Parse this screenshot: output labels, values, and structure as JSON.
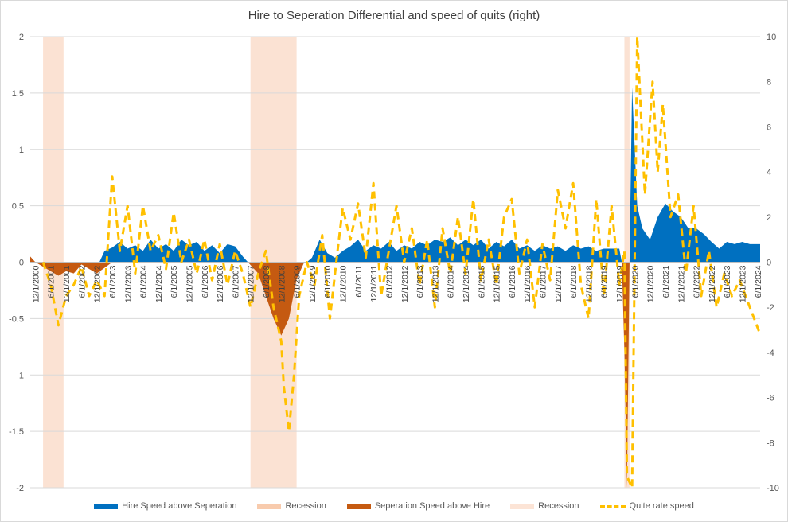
{
  "chart_data": {
    "type": "area",
    "title": "Hire to Seperation Differential and speed of quits (right)",
    "xlabel": "",
    "ylabel": "",
    "y_left": {
      "ticks": [
        "2",
        "1.5",
        "1",
        "0.5",
        "0",
        "-0.5",
        "-1",
        "-1.5",
        "-2"
      ],
      "range": [
        -2,
        2
      ]
    },
    "y_right": {
      "ticks": [
        "10",
        "8",
        "6",
        "4",
        "2",
        "0",
        "-2",
        "-4",
        "-6",
        "-8",
        "-10"
      ],
      "range": [
        -10,
        10
      ]
    },
    "x_range": [
      "2000-10",
      "2024-07"
    ],
    "x_tick_labels": [
      "12/1/2000",
      "6/1/2001",
      "12/1/2001",
      "6/1/2002",
      "12/1/2002",
      "6/1/2003",
      "12/1/2003",
      "6/1/2004",
      "12/1/2004",
      "6/1/2005",
      "12/1/2005",
      "6/1/2006",
      "12/1/2006",
      "6/1/2007",
      "12/1/2007",
      "6/1/2008",
      "12/1/2008",
      "6/1/2009",
      "12/1/2009",
      "6/1/2010",
      "12/1/2010",
      "6/1/2011",
      "12/1/2011",
      "6/1/2012",
      "12/1/2012",
      "6/1/2013",
      "12/1/2013",
      "6/1/2014",
      "12/1/2014",
      "6/1/2015",
      "12/1/2015",
      "6/1/2016",
      "12/1/2016",
      "6/1/2017",
      "12/1/2017",
      "6/1/2018",
      "12/1/2018",
      "6/1/2019",
      "12/1/2019",
      "6/1/2020",
      "12/1/2020",
      "6/1/2021",
      "12/1/2021",
      "6/1/2022",
      "12/1/2022",
      "6/1/2023",
      "12/1/2023",
      "6/1/2024"
    ],
    "recessions": [
      [
        "2001-03",
        "2001-11"
      ],
      [
        "2007-12",
        "2009-06"
      ],
      [
        "2020-02",
        "2020-04"
      ]
    ],
    "series": [
      {
        "name": "Hire Speed above Seperation",
        "kind": "area",
        "color": "#0070c0",
        "points": [
          [
            "2003-01",
            0
          ],
          [
            "2003-03",
            0.1
          ],
          [
            "2003-06",
            0.13
          ],
          [
            "2003-09",
            0.18
          ],
          [
            "2003-12",
            0.12
          ],
          [
            "2004-03",
            0.15
          ],
          [
            "2004-06",
            0.1
          ],
          [
            "2004-09",
            0.2
          ],
          [
            "2004-12",
            0.12
          ],
          [
            "2005-03",
            0.16
          ],
          [
            "2005-06",
            0.1
          ],
          [
            "2005-09",
            0.2
          ],
          [
            "2005-12",
            0.15
          ],
          [
            "2006-03",
            0.18
          ],
          [
            "2006-06",
            0.1
          ],
          [
            "2006-09",
            0.15
          ],
          [
            "2006-12",
            0.08
          ],
          [
            "2007-03",
            0.16
          ],
          [
            "2007-06",
            0.14
          ],
          [
            "2007-09",
            0.05
          ],
          [
            "2007-11",
            0
          ],
          [
            "2009-10",
            0
          ],
          [
            "2009-12",
            0.04
          ],
          [
            "2010-03",
            0.2
          ],
          [
            "2010-06",
            0.08
          ],
          [
            "2010-09",
            0.04
          ],
          [
            "2010-12",
            0.1
          ],
          [
            "2011-03",
            0.14
          ],
          [
            "2011-06",
            0.2
          ],
          [
            "2011-09",
            0.1
          ],
          [
            "2011-12",
            0.15
          ],
          [
            "2012-03",
            0.12
          ],
          [
            "2012-06",
            0.18
          ],
          [
            "2012-09",
            0.1
          ],
          [
            "2012-12",
            0.15
          ],
          [
            "2013-03",
            0.12
          ],
          [
            "2013-06",
            0.18
          ],
          [
            "2013-09",
            0.15
          ],
          [
            "2013-12",
            0.2
          ],
          [
            "2014-03",
            0.18
          ],
          [
            "2014-06",
            0.22
          ],
          [
            "2014-09",
            0.15
          ],
          [
            "2014-12",
            0.2
          ],
          [
            "2015-03",
            0.15
          ],
          [
            "2015-06",
            0.2
          ],
          [
            "2015-09",
            0.12
          ],
          [
            "2015-12",
            0.18
          ],
          [
            "2016-03",
            0.14
          ],
          [
            "2016-06",
            0.2
          ],
          [
            "2016-09",
            0.12
          ],
          [
            "2016-12",
            0.15
          ],
          [
            "2017-03",
            0.1
          ],
          [
            "2017-06",
            0.15
          ],
          [
            "2017-09",
            0.12
          ],
          [
            "2017-12",
            0.14
          ],
          [
            "2018-03",
            0.1
          ],
          [
            "2018-06",
            0.15
          ],
          [
            "2018-09",
            0.12
          ],
          [
            "2018-12",
            0.14
          ],
          [
            "2019-03",
            0.1
          ],
          [
            "2019-06",
            0.12
          ],
          [
            "2019-09",
            0.12
          ],
          [
            "2019-12",
            0.12
          ],
          [
            "2020-01",
            0
          ],
          [
            "2020-04",
            0
          ],
          [
            "2020-05",
            1.55
          ],
          [
            "2020-07",
            0.5
          ],
          [
            "2020-09",
            0.3
          ],
          [
            "2020-12",
            0.2
          ],
          [
            "2021-03",
            0.4
          ],
          [
            "2021-06",
            0.52
          ],
          [
            "2021-09",
            0.45
          ],
          [
            "2021-12",
            0.4
          ],
          [
            "2022-03",
            0.3
          ],
          [
            "2022-06",
            0.3
          ],
          [
            "2022-09",
            0.25
          ],
          [
            "2022-12",
            0.18
          ],
          [
            "2023-03",
            0.12
          ],
          [
            "2023-06",
            0.18
          ],
          [
            "2023-09",
            0.16
          ],
          [
            "2023-12",
            0.18
          ],
          [
            "2024-03",
            0.16
          ],
          [
            "2024-06",
            0.16
          ],
          [
            "2024-07",
            0.16
          ]
        ]
      },
      {
        "name": "Seperation Speed above Hire",
        "kind": "area",
        "color": "#c55a11",
        "points": [
          [
            "2000-10",
            0.05
          ],
          [
            "2000-12",
            0
          ],
          [
            "2001-03",
            -0.04
          ],
          [
            "2001-06",
            -0.08
          ],
          [
            "2001-09",
            -0.12
          ],
          [
            "2001-12",
            -0.08
          ],
          [
            "2002-03",
            -0.1
          ],
          [
            "2002-06",
            -0.02
          ],
          [
            "2002-09",
            -0.06
          ],
          [
            "2002-12",
            -0.1
          ],
          [
            "2003-03",
            -0.05
          ],
          [
            "2003-06",
            0
          ],
          [
            "2007-11",
            0
          ],
          [
            "2008-03",
            -0.1
          ],
          [
            "2008-06",
            -0.3
          ],
          [
            "2008-09",
            -0.5
          ],
          [
            "2008-12",
            -0.65
          ],
          [
            "2009-03",
            -0.5
          ],
          [
            "2009-06",
            -0.15
          ],
          [
            "2009-09",
            0
          ],
          [
            "2020-01",
            0
          ],
          [
            "2020-02",
            -0.8
          ],
          [
            "2020-03",
            -2.0
          ],
          [
            "2020-04",
            0
          ]
        ]
      },
      {
        "name": "Quite rate speed",
        "kind": "line",
        "axis": "right",
        "color": "#ffc000",
        "points": [
          [
            "2001-03",
            0.0
          ],
          [
            "2001-06",
            -1.0
          ],
          [
            "2001-09",
            -2.8
          ],
          [
            "2001-12",
            -1.5
          ],
          [
            "2002-03",
            -1.0
          ],
          [
            "2002-06",
            -0.2
          ],
          [
            "2002-09",
            -1.5
          ],
          [
            "2002-12",
            -0.8
          ],
          [
            "2003-03",
            -1.5
          ],
          [
            "2003-06",
            3.8
          ],
          [
            "2003-09",
            0.5
          ],
          [
            "2003-12",
            2.5
          ],
          [
            "2004-03",
            -0.5
          ],
          [
            "2004-06",
            2.5
          ],
          [
            "2004-09",
            0.5
          ],
          [
            "2004-12",
            1.2
          ],
          [
            "2005-03",
            -0.3
          ],
          [
            "2005-06",
            2.2
          ],
          [
            "2005-09",
            0.0
          ],
          [
            "2005-12",
            1.0
          ],
          [
            "2006-03",
            -0.5
          ],
          [
            "2006-06",
            1.0
          ],
          [
            "2006-09",
            -0.8
          ],
          [
            "2006-12",
            0.8
          ],
          [
            "2007-03",
            -1.0
          ],
          [
            "2007-06",
            0.5
          ],
          [
            "2007-09",
            -0.5
          ],
          [
            "2007-12",
            -2.0
          ],
          [
            "2008-03",
            -0.5
          ],
          [
            "2008-06",
            0.5
          ],
          [
            "2008-09",
            -2.0
          ],
          [
            "2008-12",
            -3.5
          ],
          [
            "2009-01",
            -5.5
          ],
          [
            "2009-03",
            -7.5
          ],
          [
            "2009-05",
            -5.0
          ],
          [
            "2009-07",
            -1.5
          ],
          [
            "2009-10",
            0.0
          ],
          [
            "2010-01",
            -1.0
          ],
          [
            "2010-04",
            1.2
          ],
          [
            "2010-07",
            -2.5
          ],
          [
            "2010-10",
            0.5
          ],
          [
            "2010-12",
            2.4
          ],
          [
            "2011-03",
            1.0
          ],
          [
            "2011-06",
            2.6
          ],
          [
            "2011-09",
            0.2
          ],
          [
            "2011-12",
            3.5
          ],
          [
            "2012-03",
            -1.5
          ],
          [
            "2012-06",
            0.5
          ],
          [
            "2012-09",
            2.5
          ],
          [
            "2012-12",
            0.0
          ],
          [
            "2013-03",
            1.5
          ],
          [
            "2013-06",
            -1.0
          ],
          [
            "2013-09",
            1.0
          ],
          [
            "2013-12",
            -2.0
          ],
          [
            "2014-03",
            1.5
          ],
          [
            "2014-06",
            -0.5
          ],
          [
            "2014-09",
            2.0
          ],
          [
            "2014-12",
            -0.5
          ],
          [
            "2015-03",
            2.8
          ],
          [
            "2015-06",
            -0.8
          ],
          [
            "2015-09",
            1.0
          ],
          [
            "2015-12",
            -1.0
          ],
          [
            "2016-03",
            2.0
          ],
          [
            "2016-06",
            2.8
          ],
          [
            "2016-09",
            -0.5
          ],
          [
            "2016-12",
            1.0
          ],
          [
            "2017-03",
            -2.0
          ],
          [
            "2017-06",
            0.8
          ],
          [
            "2017-09",
            -0.8
          ],
          [
            "2017-12",
            3.2
          ],
          [
            "2018-03",
            1.5
          ],
          [
            "2018-06",
            3.5
          ],
          [
            "2018-09",
            -1.0
          ],
          [
            "2018-12",
            -2.5
          ],
          [
            "2019-03",
            2.8
          ],
          [
            "2019-06",
            -1.5
          ],
          [
            "2019-09",
            2.5
          ],
          [
            "2019-12",
            -1.0
          ],
          [
            "2020-02",
            0.5
          ],
          [
            "2020-03",
            -9.5
          ],
          [
            "2020-05",
            -10.0
          ],
          [
            "2020-07",
            10.0
          ],
          [
            "2020-10",
            3.0
          ],
          [
            "2021-01",
            8.0
          ],
          [
            "2021-03",
            4.0
          ],
          [
            "2021-05",
            7.0
          ],
          [
            "2021-08",
            2.0
          ],
          [
            "2021-11",
            3.0
          ],
          [
            "2022-02",
            -0.5
          ],
          [
            "2022-05",
            2.5
          ],
          [
            "2022-08",
            -1.5
          ],
          [
            "2022-11",
            0.5
          ],
          [
            "2023-02",
            -2.0
          ],
          [
            "2023-05",
            -0.5
          ],
          [
            "2023-08",
            -1.5
          ],
          [
            "2023-11",
            -0.8
          ],
          [
            "2024-03",
            -2.0
          ],
          [
            "2024-07",
            -3.2
          ]
        ]
      }
    ],
    "legend": {
      "position": "bottom",
      "entries": [
        {
          "label": "Hire Speed above Seperation",
          "color": "#0070c0",
          "style": "area"
        },
        {
          "label": "Recession",
          "color": "#f8cbad",
          "style": "area"
        },
        {
          "label": "Seperation Speed above Hire",
          "color": "#c55a11",
          "style": "area"
        },
        {
          "label": "Recession",
          "color": "#fce4d6",
          "style": "area"
        },
        {
          "label": "Quite rate speed",
          "color": "#ffc000",
          "style": "dashed"
        }
      ]
    },
    "grid": "horizontal"
  }
}
